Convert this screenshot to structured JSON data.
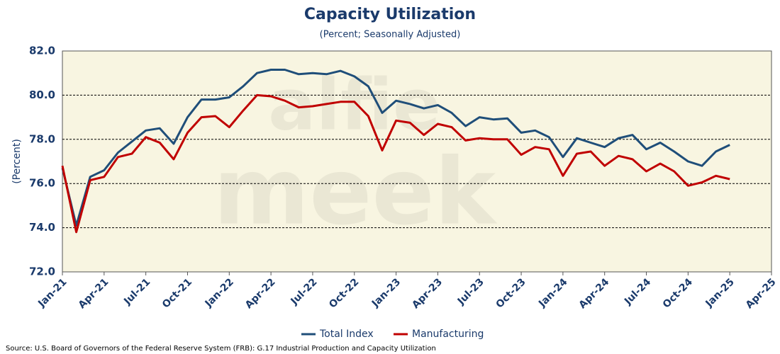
{
  "chart_data": {
    "type": "line",
    "title": "Capacity Utilization",
    "subtitle": "(Percent; Seasonally Adjusted)",
    "ylabel": "(Percent)",
    "source": "Source: U.S. Board of Governors of the Federal Reserve System (FRB): G.17 Industrial Production and Capacity Utilization",
    "watermark": [
      "alfie",
      "meek"
    ],
    "categories": [
      "Jan-21",
      null,
      null,
      "Apr-21",
      null,
      null,
      "Jul-21",
      null,
      null,
      "Oct-21",
      null,
      null,
      "Jan-22",
      null,
      null,
      "Apr-22",
      null,
      null,
      "Jul-22",
      null,
      null,
      "Oct-22",
      null,
      null,
      "Jan-23",
      null,
      null,
      "Apr-23",
      null,
      null,
      "Jul-23",
      null,
      null,
      "Oct-23",
      null,
      null,
      "Jan-24",
      null,
      null,
      "Apr-24",
      null,
      null,
      "Jul-24",
      null,
      null,
      "Oct-24",
      null,
      null,
      "Jan-25",
      null,
      null,
      "Apr-25"
    ],
    "series": [
      {
        "name": "Total Index",
        "color": "#1f4e79",
        "values": [
          76.7,
          74.1,
          76.3,
          76.6,
          77.4,
          77.9,
          78.4,
          78.5,
          77.8,
          79.0,
          79.8,
          79.8,
          79.9,
          80.4,
          81.0,
          81.15,
          81.15,
          80.95,
          81.0,
          80.95,
          81.1,
          80.85,
          80.4,
          79.2,
          79.75,
          79.6,
          79.4,
          79.55,
          79.2,
          78.6,
          79.0,
          78.9,
          78.95,
          78.3,
          78.4,
          78.1,
          77.2,
          78.05,
          77.85,
          77.65,
          78.05,
          78.2,
          77.55,
          77.85,
          77.45,
          77.0,
          76.8,
          77.45,
          77.75,
          null,
          null,
          null
        ]
      },
      {
        "name": "Manufacturing",
        "color": "#c00000",
        "values": [
          76.8,
          73.8,
          76.15,
          76.3,
          77.2,
          77.35,
          78.1,
          77.85,
          77.1,
          78.3,
          79.0,
          79.05,
          78.55,
          79.3,
          80.0,
          79.95,
          79.75,
          79.45,
          79.5,
          79.6,
          79.7,
          79.7,
          79.05,
          77.5,
          78.85,
          78.75,
          78.2,
          78.7,
          78.55,
          77.95,
          78.05,
          78.0,
          78.0,
          77.3,
          77.65,
          77.55,
          76.35,
          77.35,
          77.45,
          76.8,
          77.25,
          77.1,
          76.55,
          76.9,
          76.55,
          75.9,
          76.05,
          76.35,
          76.2,
          null,
          null,
          null
        ]
      }
    ],
    "ylim": [
      72,
      82
    ],
    "yticks": [
      {
        "value": 72,
        "label": "72.0"
      },
      {
        "value": 74,
        "label": "74.0"
      },
      {
        "value": 76,
        "label": "76.0"
      },
      {
        "value": 78,
        "label": "78.0"
      },
      {
        "value": 80,
        "label": "80.0"
      },
      {
        "value": 82,
        "label": "82.0"
      }
    ],
    "grid": true,
    "legend": "bottom"
  }
}
